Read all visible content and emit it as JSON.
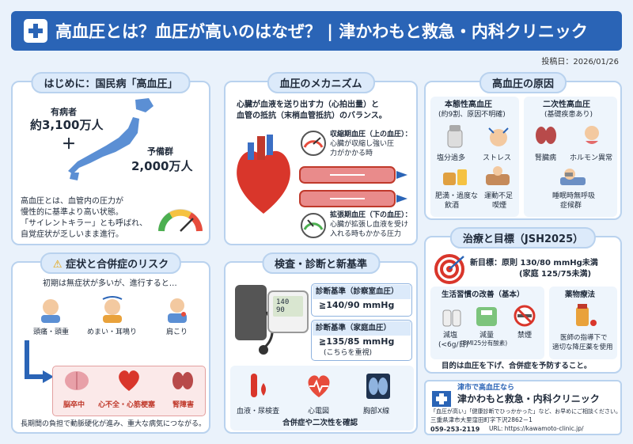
{
  "header": {
    "title": "高血圧とは？血圧が高いのはなぜ？ | 津かわもと救急・内科クリニック"
  },
  "post_date": "投稿日：2026/01/26",
  "intro": {
    "title": "はじめに：国民病「高血圧」",
    "patients_label": "有病者",
    "patients_value": "約3,100万人",
    "plus": "＋",
    "reserve_label": "予備群",
    "reserve_value": "2,000万人",
    "desc1": "高血圧とは、血管内の圧力が",
    "desc2": "慢性的に基準より高い状態。",
    "desc3": "「サイレントキラー」とも呼ばれ、",
    "desc4": "自覚症状が乏しいまま進行。"
  },
  "mechanism": {
    "title": "血圧のメカニズム",
    "intro1": "心臓が血液を送り出す力（心拍出量）と",
    "intro2": "血管の抵抗（末梢血管抵抗）のバランス。",
    "sys1": "収縮期血圧（上の血圧）：",
    "sys2": "心臓が収縮し強い圧",
    "sys3": "力がかかる時",
    "dia1": "拡張期血圧（下の血圧）：",
    "dia2": "心臓が拡張し血液を受け",
    "dia3": "入れる時もかかる圧力"
  },
  "causes": {
    "title": "高血圧の原因",
    "essential_title": "本態性高血圧",
    "essential_sub": "(約9割、原因不明確)",
    "secondary_title": "二次性高血圧",
    "secondary_sub": "(基礎疾患あり)",
    "items": [
      "塩分過多",
      "ストレス",
      "肥満・過度な",
      "飲酒",
      "運動不足",
      "喫煙"
    ],
    "sec_items": [
      "腎臓病",
      "ホルモン異常",
      "睡眠時無呼吸",
      "症候群"
    ]
  },
  "symptoms": {
    "title": "症状と合併症のリスク",
    "intro": "初期は無症状が多いが、進行すると…",
    "s1": "頭痛・頭重",
    "s2": "めまい・耳鳴り",
    "s3": "肩こり",
    "c1": "脳卒中",
    "c2": "心不全・心筋梗塞",
    "c3": "腎障害",
    "foot": "長期間の負担で動脈硬化が進み、重大な病気につながる。"
  },
  "diagnosis": {
    "title": "検査・診断と新基準",
    "bp_top": "140",
    "bp_bottom": "90",
    "clinic_label": "診断基準（診察室血圧）",
    "clinic_value": "≧140/90 mmHg",
    "home_label": "診断基準（家庭血圧）",
    "home_value": "≧135/85 mmHg",
    "home_note": "(こちらを重視)",
    "t1": "血液・尿検査",
    "t2": "心電図",
    "t3": "胸部X線",
    "foot": "合併症や二次性を確認"
  },
  "treatment": {
    "title": "治療と目標（JSH2025）",
    "goal1": "新目標：原則 130/80 mmHg未満",
    "goal2": "(家庭 125/75未満)",
    "life_title": "生活習慣の改善（基本）",
    "l1": "減塩",
    "l1b": "(<6g/日)",
    "l2": "減量",
    "l2b": "(BMI25分有酸素)",
    "l3": "禁煙",
    "drug_title": "薬物療法",
    "d1": "医師の指導下で",
    "d2": "適切な降圧薬を使用",
    "foot": "目的は血圧を下げ、合併症を予防すること。"
  },
  "clinic": {
    "pre": "津市で高血圧なら",
    "name": "津かわもと救急・内科クリニック",
    "msg": "「血圧が高い」「健康診断でひっかかった」など、お早めにご相談ください。",
    "addr": "三重県津市大里窪田町字下沢2862－1",
    "tel": "059-253-2119",
    "url": "URL: https://kawamoto-clinic.jp/"
  },
  "colors": {
    "brand": "#2a64b6",
    "panel_border": "#b9d2ee",
    "accent_red": "#c0392b"
  }
}
